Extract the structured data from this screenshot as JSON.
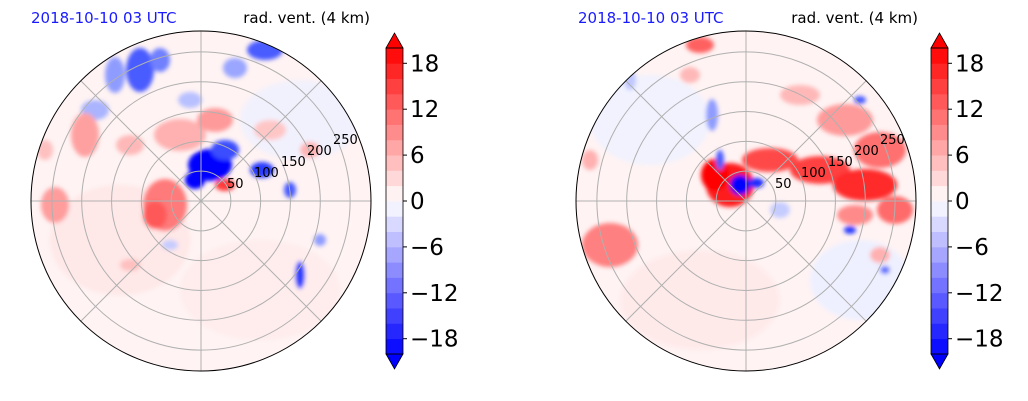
{
  "chart_data": [
    {
      "type": "heatmap",
      "projection": "polar",
      "title_left": "2018-10-10 03 UTC",
      "title_right": "rad. vent. (4 km)",
      "radial_tick_labels": [
        "50",
        "100",
        "150",
        "200",
        "250"
      ],
      "radial_ticks": [
        50,
        100,
        150,
        200,
        250
      ],
      "r_max": 285,
      "grid": true,
      "colorbar": {
        "cmap": "bwr",
        "vmin": -20,
        "vmax": 20,
        "levels_step": 2,
        "extend": "both",
        "tick_values": [
          -18,
          -12,
          -6,
          0,
          6,
          12,
          18
        ],
        "tick_labels": [
          "−18",
          "−12",
          "−6",
          "0",
          "6",
          "12",
          "18"
        ]
      }
    },
    {
      "type": "heatmap",
      "projection": "polar",
      "title_left": "2018-10-10 03 UTC",
      "title_right": "rad. vent. (4 km)",
      "radial_tick_labels": [
        "50",
        "100",
        "150",
        "200",
        "250"
      ],
      "radial_ticks": [
        50,
        100,
        150,
        200,
        250
      ],
      "r_max": 285,
      "grid": true,
      "colorbar": {
        "cmap": "bwr",
        "vmin": -20,
        "vmax": 20,
        "levels_step": 2,
        "extend": "both",
        "tick_values": [
          -18,
          -12,
          -6,
          0,
          6,
          12,
          18
        ],
        "tick_labels": [
          "−18",
          "−12",
          "−6",
          "0",
          "6",
          "12",
          "18"
        ]
      }
    }
  ],
  "colors": {
    "title_accent": "#1a1aff",
    "negative": "#0000ff",
    "positive": "#ff0000",
    "neutral": "#ffffff",
    "grid": "#b0b0b0"
  }
}
